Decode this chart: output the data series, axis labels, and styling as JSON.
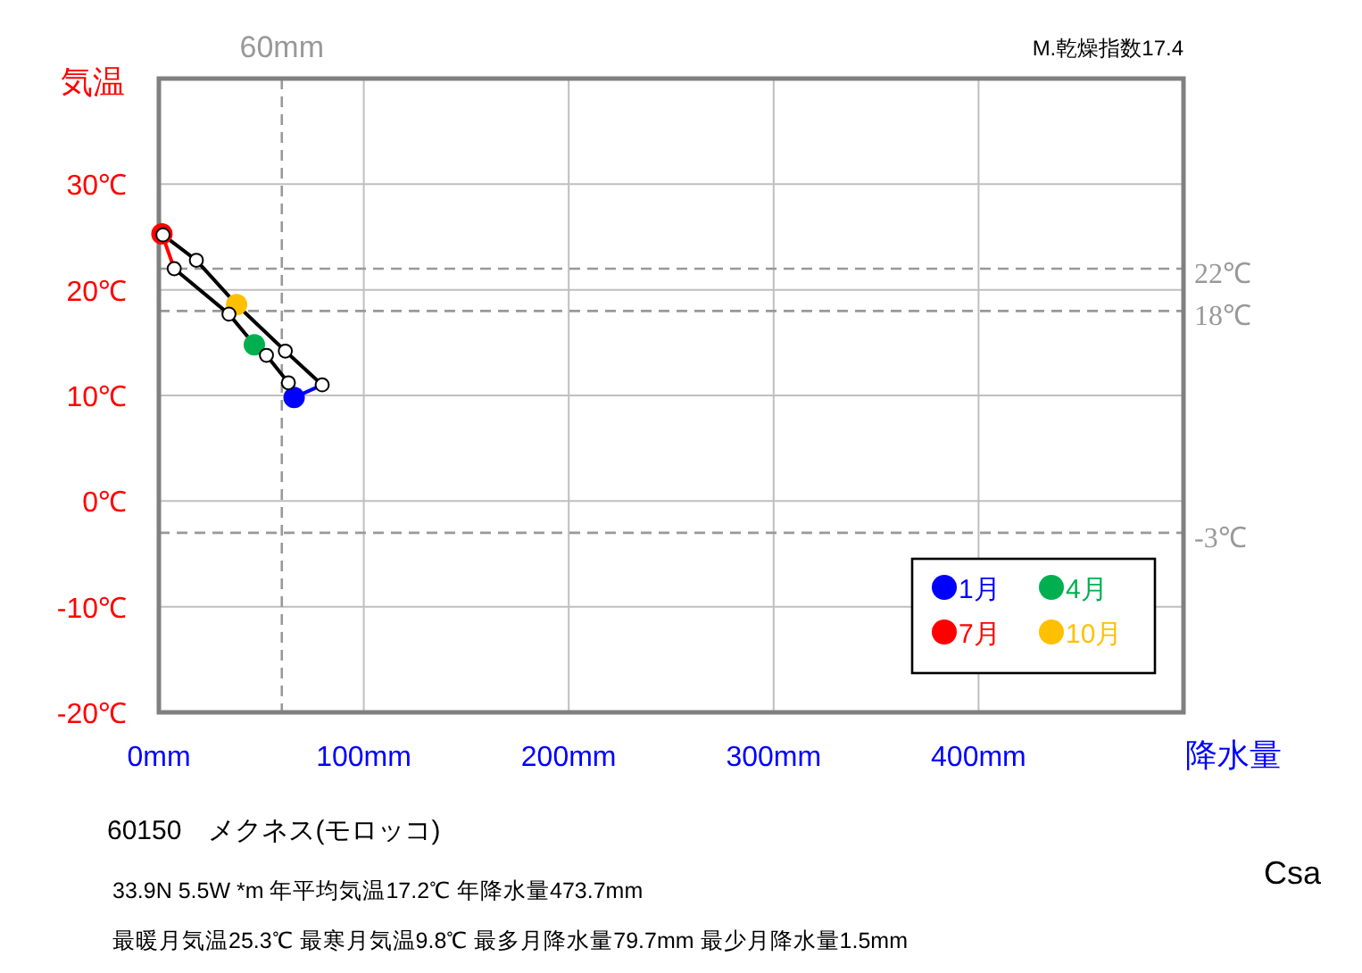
{
  "chart_data": {
    "type": "line",
    "title": "60150　メクネス(モロッコ)",
    "xlabel": "降水量",
    "ylabel": "気温",
    "annotations": [
      "M.乾燥指数17.4",
      "33.9N  5.5W *m  年平均気温17.2℃ 年降水量473.7mm",
      "最暖月気温25.3℃ 最寒月気温9.8℃ 最多月降水量79.7mm 最少月降水量1.5mm",
      "Csa"
    ],
    "xlim": [
      0,
      500
    ],
    "ylim": [
      -20,
      40
    ],
    "xticks": [
      {
        "value": 0,
        "label": "0mm"
      },
      {
        "value": 100,
        "label": "100mm"
      },
      {
        "value": 200,
        "label": "200mm"
      },
      {
        "value": 300,
        "label": "300mm"
      },
      {
        "value": 400,
        "label": "400mm"
      },
      {
        "value": 500,
        "label": null
      }
    ],
    "yticks": [
      {
        "value": -20,
        "label": "-20℃"
      },
      {
        "value": -10,
        "label": "-10℃"
      },
      {
        "value": 0,
        "label": "0℃"
      },
      {
        "value": 10,
        "label": "10℃"
      },
      {
        "value": 20,
        "label": "20℃"
      },
      {
        "value": 30,
        "label": "30℃"
      },
      {
        "value": 40,
        "label": null
      }
    ],
    "grid": true,
    "legend": "bottom right",
    "ref_lines": [
      {
        "axis": "y",
        "value": 22,
        "label": "22℃",
        "color": "#999999",
        "line_style": "dashed"
      },
      {
        "axis": "y",
        "value": 18,
        "label": "18℃",
        "color": "#999999",
        "line_style": "dashed"
      },
      {
        "axis": "y",
        "value": -3,
        "label": "-3℃",
        "color": "#999999",
        "line_style": "dashed"
      },
      {
        "axis": "x",
        "value": 60,
        "label": "60mm",
        "color": "#999999",
        "line_style": "dashed"
      }
    ],
    "series": [
      {
        "type": "line",
        "color": "#000000",
        "marker": "circle",
        "x": [
          66,
          63.2,
          52.5,
          46.6,
          34.2,
          7.5
        ],
        "values": [
          9.8,
          11.2,
          13.8,
          14.8,
          17.7,
          22.0
        ]
      },
      {
        "type": "line",
        "color": "#000000",
        "marker": "circle",
        "x": [
          1.5,
          2.0,
          18.3,
          37.9,
          61.7,
          79.7
        ],
        "values": [
          25.3,
          25.2,
          22.8,
          18.6,
          14.2,
          11.0
        ]
      },
      {
        "type": "line",
        "color": "#0000ff",
        "marker": "none",
        "x": [
          79.7,
          66
        ],
        "values": [
          11.0,
          9.8
        ]
      },
      {
        "type": "line",
        "color": "#ff0000",
        "marker": "none",
        "x": [
          7.5,
          1.5
        ],
        "values": [
          22.0,
          25.3
        ]
      },
      {
        "type": "scatter",
        "name": "1月",
        "color": "#0000ff",
        "x": [
          66
        ],
        "values": [
          9.8
        ]
      },
      {
        "type": "scatter",
        "name": "4月",
        "color": "#00b050",
        "x": [
          46.6
        ],
        "values": [
          14.8
        ]
      },
      {
        "type": "scatter",
        "name": "7月",
        "color": "#ff0000",
        "x": [
          1.5
        ],
        "values": [
          25.3
        ]
      },
      {
        "type": "scatter",
        "name": "10月",
        "color": "#ffc000",
        "x": [
          37.9
        ],
        "values": [
          18.6
        ]
      }
    ]
  }
}
